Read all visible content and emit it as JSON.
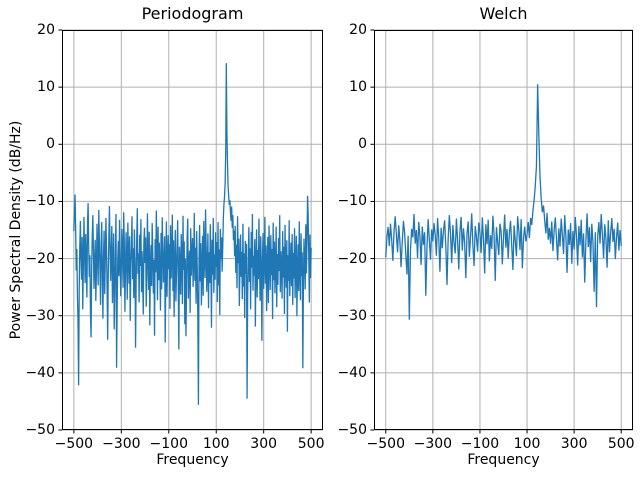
{
  "figure": {
    "background": "#ffffff",
    "colors": {
      "line": "#1f77b4",
      "grid": "#b0b0b0",
      "spine": "#000000",
      "text": "#000000"
    }
  },
  "chart_data": [
    {
      "type": "line",
      "title": "Periodogram",
      "xlabel": "Frequency",
      "ylabel": "Power Spectral Density (dB/Hz)",
      "xlim": [
        -550,
        550
      ],
      "ylim": [
        -50,
        20
      ],
      "xticks": [
        -500,
        -300,
        -100,
        100,
        300,
        500
      ],
      "yticks": [
        20,
        10,
        0,
        -10,
        -20,
        -30,
        -40,
        -50
      ],
      "grid": true,
      "legend": null,
      "line_color": "#1f77b4",
      "x_start": -500,
      "x_end": 500,
      "n_points": 401,
      "peak": {
        "frequency": 142.5,
        "psd_db": 14.2
      },
      "noise_floor_db": -19,
      "values": [
        -15.2,
        -11.8,
        -8.8,
        -14.5,
        -22.1,
        -18.3,
        -26.4,
        -31.2,
        -42.2,
        -25.6,
        -17.9,
        -13.4,
        -19.8,
        -23.7,
        -16.2,
        -28.9,
        -21.4,
        -12.7,
        -18.6,
        -24.3,
        -15.7,
        -20.9,
        -26.8,
        -14.1,
        -10.3,
        -17.5,
        -23.2,
        -19.4,
        -29.6,
        -33.8,
        -21.7,
        -15.9,
        -12.4,
        -18.8,
        -25.3,
        -20.6,
        -16.7,
        -27.4,
        -22.8,
        -13.9,
        -19.2,
        -24.7,
        -11.5,
        -16.8,
        -21.9,
        -28.1,
        -17.3,
        -13.6,
        -23.4,
        -30.5,
        -19.7,
        -15.1,
        -26.2,
        -20.3,
        -12.9,
        -18.1,
        -24.9,
        -34.2,
        -22.5,
        -16.4,
        -10.8,
        -17.7,
        -23.9,
        -19.5,
        -14.3,
        -27.8,
        -21.2,
        -15.6,
        -32.4,
        -25.8,
        -18.4,
        -12.2,
        -39.1,
        -28.6,
        -20.1,
        -16.9,
        -23.1,
        -13.2,
        -19.9,
        -26.6,
        -21.6,
        -14.8,
        -18.9,
        -25.1,
        -11.9,
        -17.1,
        -29.3,
        -22.3,
        -15.4,
        -20.7,
        -27.2,
        -13.7,
        -19.3,
        -24.4,
        -16.1,
        -30.9,
        -21.1,
        -17.8,
        -12.6,
        -23.6,
        -18.2,
        -26.9,
        -14.9,
        -20.4,
        -35.6,
        -24.1,
        -16.5,
        -11.2,
        -22.7,
        -19.1,
        -27.7,
        -15.8,
        -21.3,
        -13.1,
        -25.9,
        -18.7,
        -23.3,
        -29.8,
        -17.4,
        -14.6,
        -20.8,
        -16.3,
        -28.4,
        -22.9,
        -12.1,
        -19.6,
        -25.5,
        -15.3,
        -31.7,
        -21.5,
        -17.6,
        -24.8,
        -13.8,
        -18.5,
        -26.1,
        -20.2,
        -33.5,
        -16.6,
        -22.4,
        -11.6,
        -19.4,
        -27.3,
        -14.4,
        -23.8,
        -17.2,
        -21.8,
        -29.1,
        -15.5,
        -25.4,
        -12.8,
        -18.3,
        -24.2,
        -20.5,
        -16.1,
        -34.7,
        -22.2,
        -13.5,
        -26.7,
        -19.8,
        -15.9,
        -21.9,
        -17.5,
        -28.8,
        -14.2,
        -23.5,
        -19.2,
        -12.3,
        -25.7,
        -16.8,
        -30.2,
        -20.9,
        -15.0,
        -27.5,
        -22.6,
        -18.0,
        -13.3,
        -24.6,
        -35.9,
        -17.9,
        -21.0,
        -26.3,
        -15.7,
        -19.5,
        -28.0,
        -12.5,
        -22.0,
        -17.0,
        -31.5,
        -20.0,
        -33.6,
        -24.5,
        -16.2,
        -13.0,
        -27.0,
        -21.4,
        -18.6,
        -29.5,
        -14.7,
        -23.0,
        -19.0,
        -16.4,
        -25.0,
        -20.6,
        -12.0,
        -23.9,
        -18.1,
        -27.9,
        -15.2,
        -21.7,
        -30.8,
        -45.6,
        -19.9,
        -14.1,
        -24.0,
        -17.3,
        -28.2,
        -22.1,
        -16.0,
        -26.5,
        -13.4,
        -19.7,
        -23.4,
        -11.4,
        -17.8,
        -25.8,
        -21.2,
        -15.6,
        -28.7,
        -18.9,
        -24.3,
        -14.0,
        -20.3,
        -32.1,
        -16.7,
        -22.8,
        -12.9,
        -26.0,
        -19.3,
        -23.7,
        -15.4,
        -21.5,
        -17.1,
        -27.6,
        -13.6,
        -24.7,
        -18.4,
        -29.9,
        -14.8,
        -20.1,
        -16.3,
        -22.3,
        -18.0,
        -12.8,
        -10.5,
        -9.2,
        -6.8,
        -1.5,
        14.2,
        2.3,
        -3.2,
        -7.4,
        -9.0,
        -10.6,
        -9.8,
        -11.9,
        -13.4,
        -10.9,
        -14.6,
        -12.4,
        -16.8,
        -15.1,
        -19.6,
        -14.3,
        -22.5,
        -17.6,
        -25.2,
        -12.6,
        -20.8,
        -16.5,
        -28.3,
        -21.0,
        -15.8,
        -23.2,
        -18.8,
        -27.1,
        -13.9,
        -24.9,
        -19.1,
        -30.4,
        -16.9,
        -22.7,
        -17.4,
        -44.5,
        -26.4,
        -20.2,
        -14.5,
        -24.1,
        -18.2,
        -28.9,
        -15.3,
        -21.6,
        -12.2,
        -25.6,
        -19.5,
        -23.0,
        -16.6,
        -31.9,
        -20.7,
        -14.9,
        -26.8,
        -18.5,
        -23.6,
        -13.0,
        -21.3,
        -27.4,
        -16.1,
        -22.0,
        -34.4,
        -19.8,
        -15.5,
        -25.3,
        -20.4,
        -12.7,
        -24.4,
        -17.7,
        -29.2,
        -21.8,
        -16.2,
        -27.8,
        -14.2,
        -20.0,
        -25.5,
        -15.9,
        -22.9,
        -18.3,
        -30.6,
        -13.7,
        -23.8,
        -17.0,
        -26.1,
        -21.1,
        -14.4,
        -28.5,
        -19.2,
        -24.6,
        -16.4,
        -22.2,
        -12.4,
        -25.9,
        -18.7,
        -21.4,
        -27.0,
        -15.2,
        -23.3,
        -17.9,
        -29.7,
        -14.1,
        -20.9,
        -25.1,
        -16.8,
        -32.8,
        -19.4,
        -23.9,
        -13.3,
        -26.6,
        -21.2,
        -17.2,
        -24.8,
        -15.7,
        -28.1,
        -19.0,
        -23.5,
        -14.7,
        -26.9,
        -20.5,
        -16.0,
        -30.1,
        -22.4,
        -17.5,
        -25.7,
        -13.5,
        -21.9,
        -27.3,
        -15.6,
        -23.1,
        -18.9,
        -39.2,
        -24.2,
        -16.5,
        -20.6,
        -25.4,
        -14.0,
        -22.6,
        -17.3,
        -9.0,
        -12.5,
        -19.6,
        -27.7,
        -15.8,
        -23.4,
        -18.1
      ]
    },
    {
      "type": "line",
      "title": "Welch",
      "xlabel": "Frequency",
      "ylabel": "",
      "xlim": [
        -550,
        550
      ],
      "ylim": [
        -50,
        20
      ],
      "xticks": [
        -500,
        -300,
        -100,
        100,
        300,
        500
      ],
      "yticks": [
        20,
        10,
        0,
        -10,
        -20,
        -30,
        -40,
        -50
      ],
      "grid": true,
      "legend": null,
      "line_color": "#1f77b4",
      "x_start": -500,
      "x_end": 500,
      "n_points": 201,
      "peak": {
        "frequency": 145,
        "psd_db": 10.5
      },
      "noise_floor_db": -16.5,
      "values": [
        -19.8,
        -16.2,
        -14.5,
        -17.8,
        -13.9,
        -16.6,
        -20.4,
        -15.3,
        -12.6,
        -15.8,
        -18.9,
        -14.2,
        -16.9,
        -21.5,
        -17.1,
        -13.4,
        -15.5,
        -19.3,
        -22.8,
        -16.0,
        -30.7,
        -18.4,
        -14.8,
        -16.3,
        -12.2,
        -17.4,
        -15.0,
        -19.9,
        -13.6,
        -16.1,
        -21.1,
        -14.4,
        -17.6,
        -15.4,
        -26.5,
        -18.0,
        -13.1,
        -16.7,
        -20.2,
        -14.9,
        -17.0,
        -13.8,
        -15.9,
        -19.5,
        -12.9,
        -16.4,
        -22.3,
        -14.6,
        -18.2,
        -15.1,
        -13.3,
        -17.9,
        -24.6,
        -16.5,
        -12.4,
        -15.6,
        -20.8,
        -14.1,
        -17.3,
        -19.1,
        -13.0,
        -16.8,
        -21.9,
        -15.2,
        -12.7,
        -18.6,
        -14.7,
        -17.2,
        -23.4,
        -15.7,
        -13.5,
        -19.7,
        -16.1,
        -12.1,
        -17.7,
        -21.3,
        -14.3,
        -16.2,
        -18.8,
        -13.7,
        -15.4,
        -19.0,
        -12.8,
        -16.6,
        -22.6,
        -14.0,
        -17.5,
        -13.2,
        -20.5,
        -15.9,
        -18.3,
        -12.5,
        -16.0,
        -23.9,
        -14.5,
        -17.1,
        -19.4,
        -13.9,
        -15.3,
        -21.0,
        -16.3,
        -12.3,
        -18.1,
        -14.8,
        -20.0,
        -15.5,
        -13.4,
        -17.8,
        -22.0,
        -14.2,
        -16.9,
        -19.6,
        -12.6,
        -15.0,
        -18.5,
        -13.1,
        -21.7,
        -16.5,
        -14.4,
        -17.0,
        -15.8,
        -13.6,
        -16.4,
        -12.9,
        -14.1,
        -11.6,
        -9.8,
        -7.2,
        -3.8,
        10.5,
        1.8,
        -5.6,
        -9.4,
        -11.9,
        -10.7,
        -13.3,
        -15.6,
        -12.0,
        -16.7,
        -14.6,
        -17.4,
        -13.5,
        -18.7,
        -15.1,
        -12.8,
        -16.6,
        -20.3,
        -14.7,
        -17.9,
        -13.0,
        -15.9,
        -19.2,
        -12.4,
        -16.1,
        -22.5,
        -14.9,
        -17.6,
        -13.8,
        -20.9,
        -15.2,
        -18.4,
        -12.7,
        -16.0,
        -21.2,
        -14.3,
        -17.7,
        -13.2,
        -19.8,
        -15.6,
        -24.2,
        -16.8,
        -12.1,
        -18.0,
        -14.5,
        -20.6,
        -13.9,
        -17.2,
        -25.8,
        -15.4,
        -28.5,
        -16.2,
        -13.6,
        -17.4,
        -12.2,
        -15.7,
        -19.9,
        -14.0,
        -16.5,
        -21.6,
        -13.3,
        -18.9,
        -15.5,
        -12.9,
        -17.1,
        -14.8,
        -20.1,
        -16.3,
        -13.7,
        -18.6,
        -15.0,
        -17.8
      ]
    }
  ]
}
